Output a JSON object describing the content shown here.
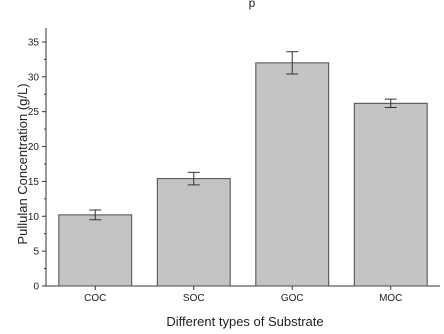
{
  "chart_data": {
    "type": "bar",
    "title": "",
    "xlabel": "Different types of Substrate",
    "ylabel": "Pullulan Concentration (g/L)",
    "categories": [
      "COC",
      "SOC",
      "GOC",
      "MOC"
    ],
    "values": [
      10.2,
      15.4,
      32.0,
      26.2
    ],
    "errors": [
      0.7,
      0.9,
      1.6,
      0.6
    ],
    "ylim": [
      0,
      37
    ],
    "yticks": [
      0,
      5,
      10,
      15,
      20,
      25,
      30,
      35
    ],
    "grid": false,
    "legend": "none",
    "colors": {
      "bar_fill": "#c4c4c4",
      "bar_stroke": "#4a4a4a",
      "axis": "#333333"
    }
  }
}
